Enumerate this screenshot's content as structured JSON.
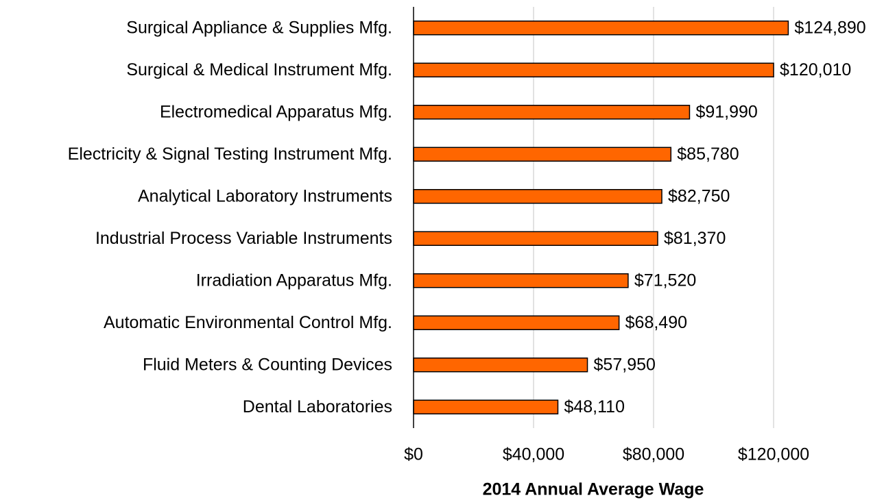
{
  "chart_data": {
    "type": "barh",
    "xlabel": "2014 Annual Average Wage",
    "categories": [
      "Surgical Appliance & Supplies Mfg.",
      "Surgical & Medical Instrument Mfg.",
      "Electromedical Apparatus Mfg.",
      "Electricity & Signal Testing Instrument Mfg.",
      "Analytical Laboratory Instruments",
      "Industrial Process Variable Instruments",
      "Irradiation Apparatus Mfg.",
      "Automatic Environmental Control Mfg.",
      "Fluid Meters & Counting Devices",
      "Dental Laboratories"
    ],
    "values": [
      124890,
      120010,
      91990,
      85780,
      82750,
      81370,
      71520,
      68490,
      57950,
      48110
    ],
    "value_labels": [
      "$124,890",
      "$120,010",
      "$91,990",
      "$85,780",
      "$82,750",
      "$81,370",
      "$71,520",
      "$68,490",
      "$57,950",
      "$48,110"
    ],
    "color": "#ff6600",
    "xlim": [
      0,
      140000
    ],
    "xticks": [
      {
        "value": 0,
        "label": "$0"
      },
      {
        "value": 40000,
        "label": "$40,000"
      },
      {
        "value": 80000,
        "label": "$80,000"
      },
      {
        "value": 120000,
        "label": "$120,000"
      }
    ],
    "grid": true
  }
}
